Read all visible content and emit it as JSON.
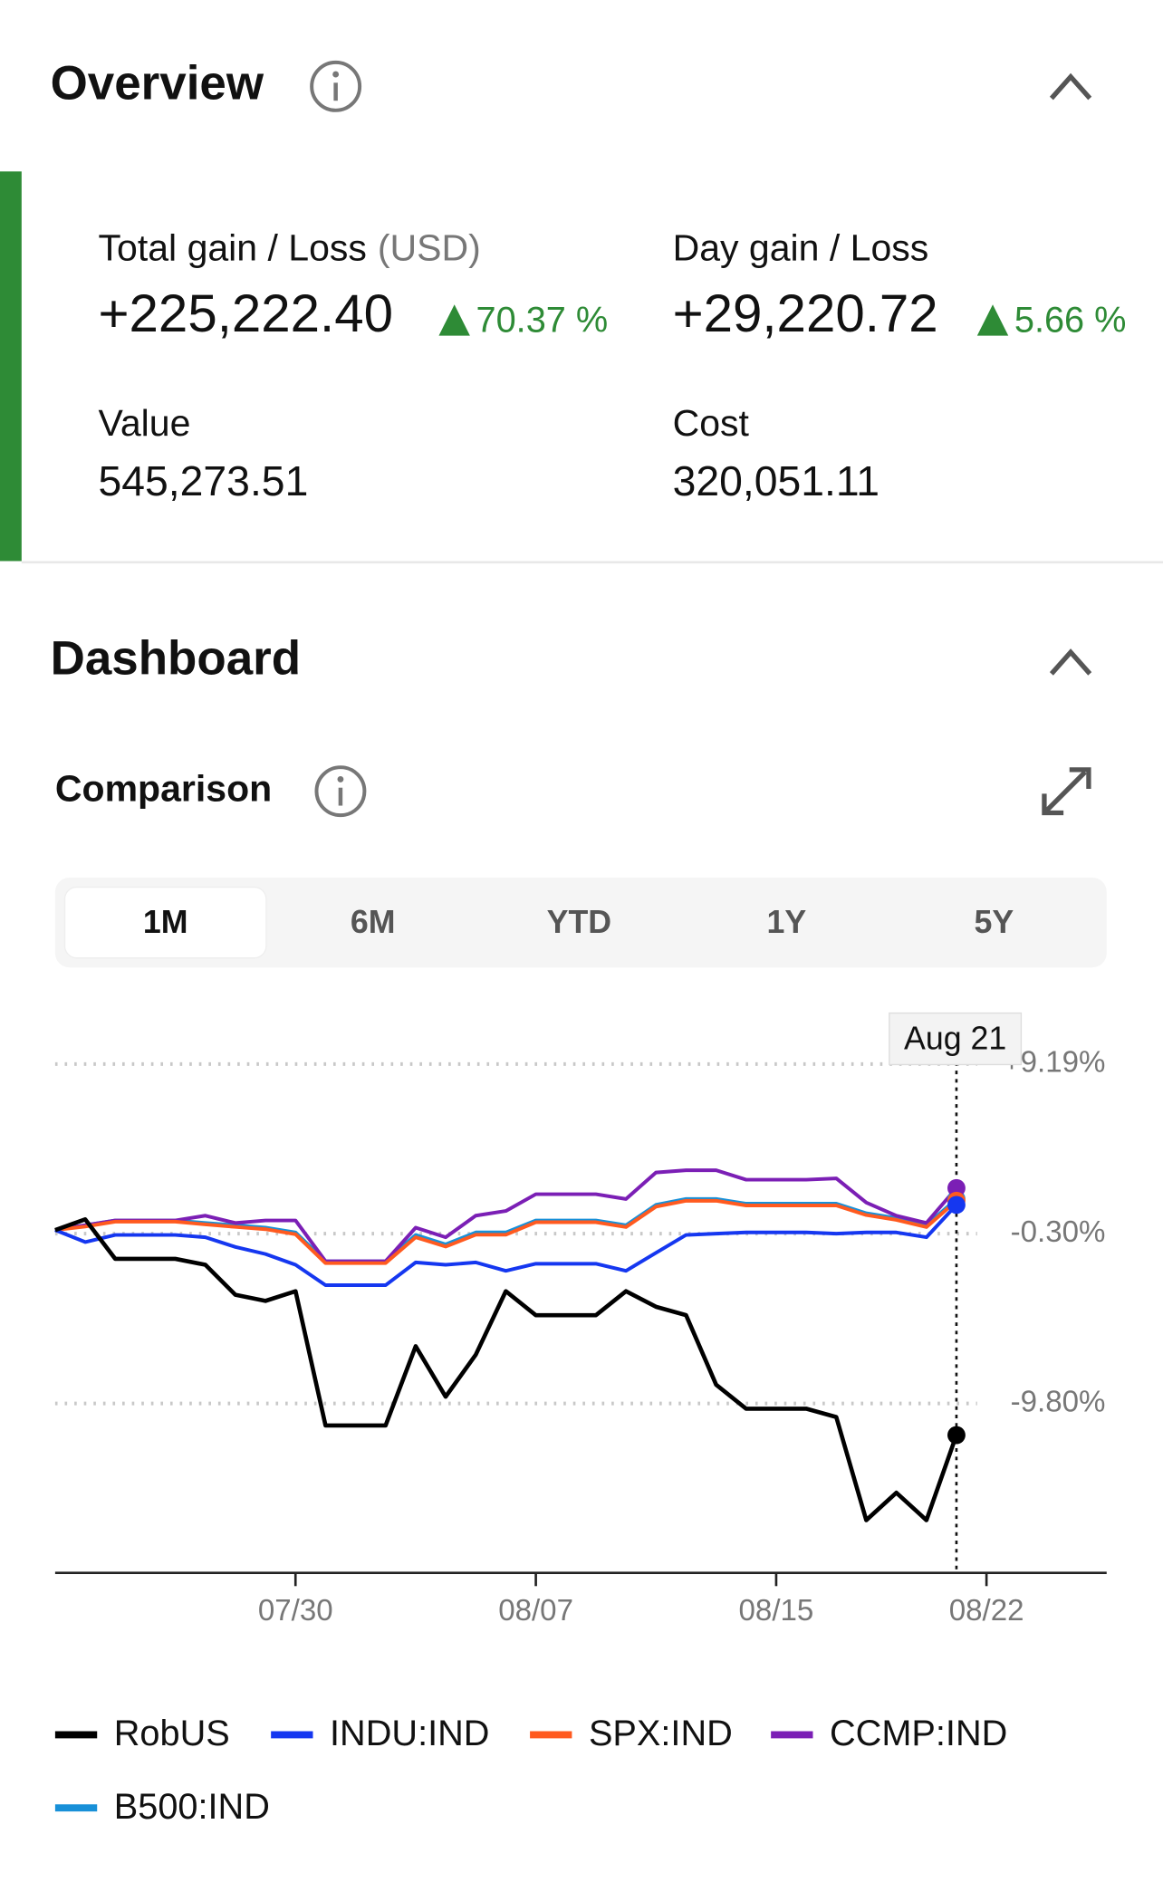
{
  "overview": {
    "title": "Overview",
    "total_gain_label": "Total gain / Loss",
    "currency": "(USD)",
    "total_gain": "+225,222.40",
    "total_gain_pct": "70.37 %",
    "day_gain_label": "Day gain / Loss",
    "day_gain": "+29,220.72",
    "day_gain_pct": "5.66 %",
    "value_label": "Value",
    "value": "545,273.51",
    "cost_label": "Cost",
    "cost": "320,051.11"
  },
  "dashboard": {
    "title": "Dashboard",
    "comparison": "Comparison",
    "ranges": [
      "1M",
      "6M",
      "YTD",
      "1Y",
      "5Y"
    ]
  },
  "chart_data": {
    "type": "line",
    "tooltip": "Aug 21",
    "grid": true,
    "x": [
      "07/22",
      "07/23",
      "07/24",
      "07/25",
      "07/26",
      "07/27",
      "07/28",
      "07/29",
      "07/30",
      "07/31",
      "08/01",
      "08/02",
      "08/03",
      "08/04",
      "08/05",
      "08/06",
      "08/07",
      "08/08",
      "08/09",
      "08/10",
      "08/11",
      "08/12",
      "08/13",
      "08/14",
      "08/15",
      "08/16",
      "08/17",
      "08/18",
      "08/19",
      "08/20",
      "08/21"
    ],
    "xlim": [
      "07/22",
      "08/26"
    ],
    "xticks": [
      "07/30",
      "08/07",
      "08/15",
      "08/22"
    ],
    "ylim": [
      -19.28,
      11.07
    ],
    "yticks": [
      {
        "value": 9.19,
        "label": "+9.19%"
      },
      {
        "value": -0.3,
        "label": "-0.30%"
      },
      {
        "value": -9.8,
        "label": "-9.80%"
      }
    ],
    "series": [
      {
        "name": "RobUS",
        "color": "#000000",
        "values": [
          -0.1,
          0.5,
          -1.71,
          -1.71,
          -1.71,
          -2.04,
          -3.72,
          -4.06,
          -3.52,
          -11.03,
          -11.03,
          -11.03,
          -6.6,
          -9.42,
          -7.07,
          -3.52,
          -4.86,
          -4.86,
          -4.86,
          -3.52,
          -4.39,
          -4.86,
          -8.75,
          -10.09,
          -10.09,
          -10.09,
          -10.56,
          -16.33,
          -14.79,
          -16.33,
          -11.57
        ]
      },
      {
        "name": "INDU:IND",
        "color": "#1537f0",
        "values": [
          -0.1,
          -0.77,
          -0.37,
          -0.37,
          -0.37,
          -0.5,
          -1.04,
          -1.44,
          -2.04,
          -3.18,
          -3.18,
          -3.18,
          -1.91,
          -2.04,
          -1.91,
          -2.38,
          -1.98,
          -1.98,
          -1.98,
          -2.38,
          -1.37,
          -0.37,
          -0.3,
          -0.23,
          -0.23,
          -0.23,
          -0.3,
          -0.23,
          -0.23,
          -0.5,
          1.31
        ]
      },
      {
        "name": "SPX:IND",
        "color": "#ff5a1f",
        "values": [
          -0.1,
          0.1,
          0.37,
          0.37,
          0.37,
          0.22,
          0.08,
          -0.05,
          -0.33,
          -1.95,
          -1.95,
          -1.95,
          -0.5,
          -1.02,
          -0.36,
          -0.36,
          0.34,
          0.34,
          0.34,
          0.07,
          1.21,
          1.54,
          1.54,
          1.28,
          1.28,
          1.28,
          1.28,
          0.74,
          0.47,
          0.07,
          1.54
        ]
      },
      {
        "name": "CCMP:IND",
        "color": "#7b1fb5",
        "values": [
          -0.1,
          0.17,
          0.44,
          0.44,
          0.44,
          0.71,
          0.3,
          0.44,
          0.44,
          -1.84,
          -1.84,
          -1.84,
          0.04,
          -0.5,
          0.71,
          0.97,
          1.91,
          1.91,
          1.91,
          1.64,
          3.12,
          3.25,
          3.25,
          2.72,
          2.72,
          2.72,
          2.79,
          1.44,
          0.71,
          0.3,
          2.25
        ]
      },
      {
        "name": "B500:IND",
        "color": "#1890d8",
        "values": [
          -0.1,
          0.17,
          0.44,
          0.44,
          0.44,
          0.3,
          0.17,
          0.04,
          -0.23,
          -1.84,
          -1.84,
          -1.84,
          -0.37,
          -0.9,
          -0.23,
          -0.23,
          0.44,
          0.44,
          0.44,
          0.17,
          1.31,
          1.64,
          1.64,
          1.38,
          1.38,
          1.38,
          1.38,
          0.84,
          0.57,
          0.17,
          1.64
        ]
      }
    ]
  }
}
